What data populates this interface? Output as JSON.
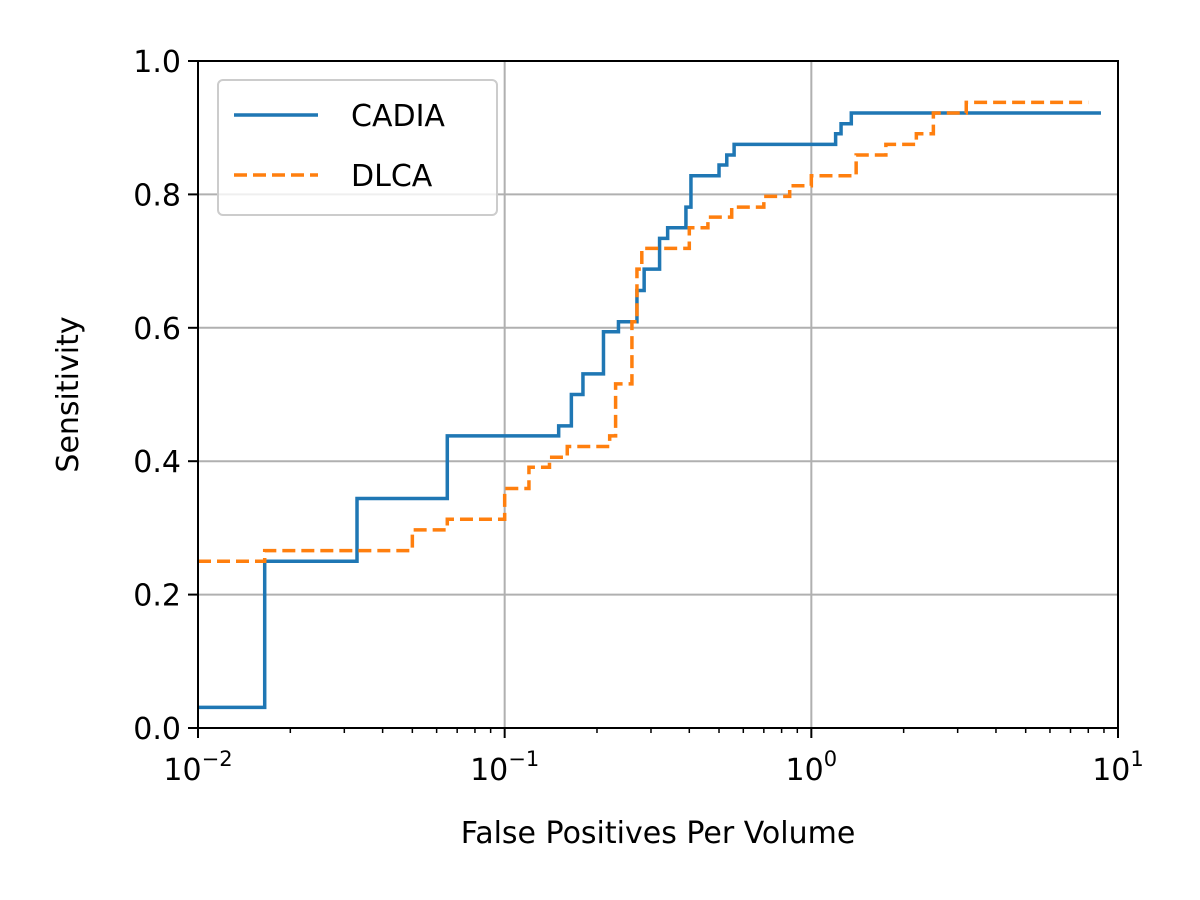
{
  "chart_data": {
    "type": "line",
    "title": "",
    "xlabel": "False Positives Per Volume",
    "ylabel": "Sensitivity",
    "xscale": "log",
    "xlim": [
      0.01,
      10
    ],
    "ylim": [
      0.0,
      1.0
    ],
    "grid": true,
    "legend_position": "top-left",
    "line_shape": "step-post",
    "x_ticks": [
      {
        "value": 0.01,
        "base": "10",
        "exp": "−2"
      },
      {
        "value": 0.1,
        "base": "10",
        "exp": "−1"
      },
      {
        "value": 1,
        "base": "10",
        "exp": "0"
      },
      {
        "value": 10,
        "base": "10",
        "exp": "1"
      }
    ],
    "y_ticks": [
      {
        "value": 0.0,
        "label": "0.0"
      },
      {
        "value": 0.2,
        "label": "0.2"
      },
      {
        "value": 0.4,
        "label": "0.4"
      },
      {
        "value": 0.6,
        "label": "0.6"
      },
      {
        "value": 0.8,
        "label": "0.8"
      },
      {
        "value": 1.0,
        "label": "1.0"
      }
    ],
    "series": [
      {
        "name": "CADIA",
        "color": "#1f77b4",
        "dash": "solid",
        "x": [
          0.01,
          0.0165,
          0.033,
          0.065,
          0.15,
          0.165,
          0.18,
          0.21,
          0.235,
          0.27,
          0.285,
          0.295,
          0.32,
          0.34,
          0.36,
          0.39,
          0.405,
          0.5,
          0.53,
          0.56,
          1.2,
          1.25,
          1.35,
          8.8
        ],
        "y": [
          0.031,
          0.25,
          0.344,
          0.438,
          0.453,
          0.5,
          0.531,
          0.594,
          0.609,
          0.656,
          0.688,
          0.688,
          0.734,
          0.75,
          0.75,
          0.781,
          0.828,
          0.844,
          0.859,
          0.875,
          0.891,
          0.906,
          0.922,
          0.922
        ]
      },
      {
        "name": "DLCA",
        "color": "#ff7f0e",
        "dash": "dashed",
        "x": [
          0.01,
          0.0165,
          0.05,
          0.065,
          0.1,
          0.12,
          0.14,
          0.16,
          0.22,
          0.23,
          0.26,
          0.27,
          0.28,
          0.4,
          0.46,
          0.55,
          0.7,
          0.85,
          1.0,
          1.4,
          1.75,
          2.2,
          2.5,
          3.2,
          8.0
        ],
        "y": [
          0.25,
          0.266,
          0.297,
          0.313,
          0.359,
          0.391,
          0.406,
          0.422,
          0.438,
          0.516,
          0.609,
          0.688,
          0.719,
          0.75,
          0.766,
          0.781,
          0.797,
          0.813,
          0.828,
          0.859,
          0.875,
          0.891,
          0.922,
          0.938,
          0.938
        ]
      }
    ]
  }
}
